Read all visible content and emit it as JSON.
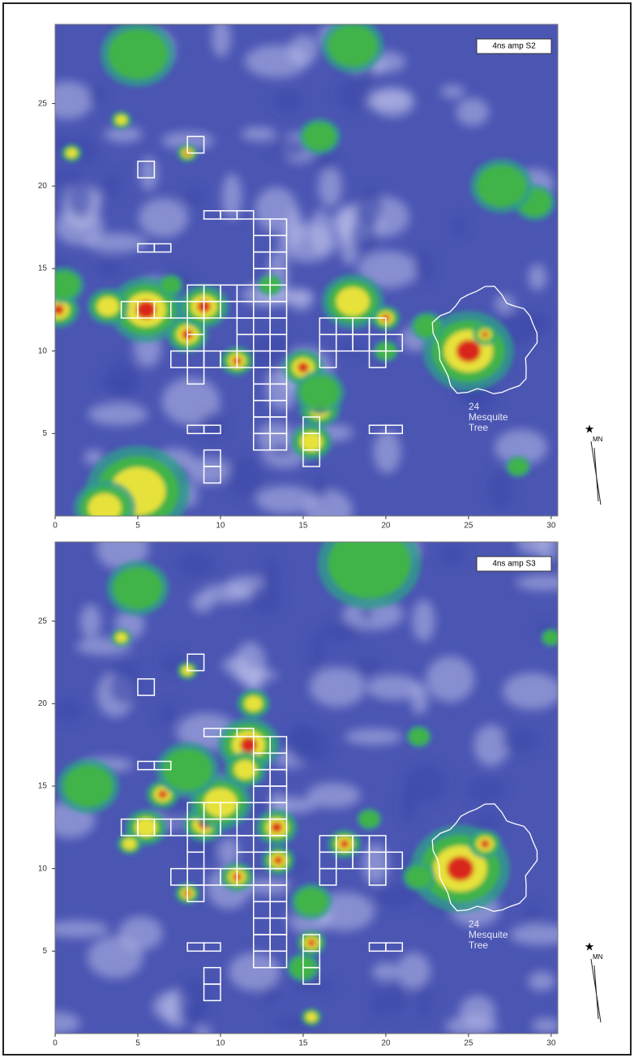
{
  "panels": [
    {
      "label": "4ns amp S2",
      "xlim": [
        0,
        30.4
      ],
      "ylim": [
        0,
        29.8
      ],
      "xticks": [
        0,
        5,
        10,
        15,
        20,
        25,
        30
      ],
      "yticks": [
        5,
        10,
        15,
        20,
        25
      ],
      "annotation": [
        "24",
        "Mesquite",
        "Tree"
      ],
      "north": "MN"
    },
    {
      "label": "4ns amp S3",
      "xlim": [
        0,
        30.4
      ],
      "ylim": [
        0,
        29.8
      ],
      "xticks": [
        0,
        5,
        10,
        15,
        20,
        25,
        30
      ],
      "yticks": [
        5,
        10,
        15,
        20,
        25
      ],
      "annotation": [
        "24",
        "Mesquite",
        "Tree"
      ],
      "north": "MN"
    }
  ]
}
